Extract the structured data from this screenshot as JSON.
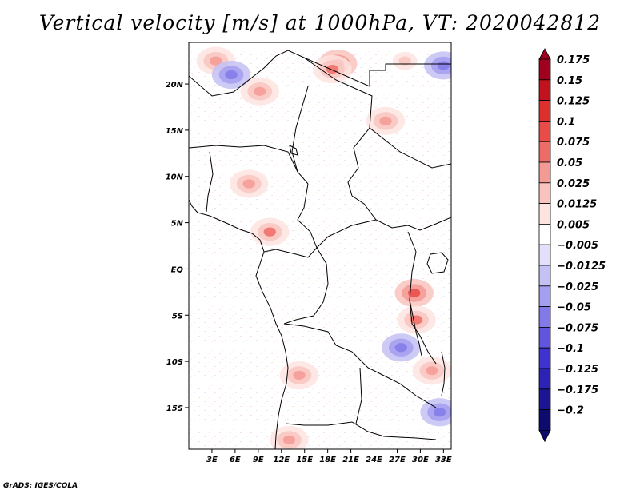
{
  "title": "Vertical velocity [m/s] at 1000hPa, VT: 2020042812",
  "credit": "GrADS: IGES/COLA",
  "map": {
    "lat_range": [
      -19.5,
      24.5
    ],
    "lon_range": [
      0,
      34
    ],
    "lat_ticks": [
      {
        "value": 20,
        "label": "20N"
      },
      {
        "value": 15,
        "label": "15N"
      },
      {
        "value": 10,
        "label": "10N"
      },
      {
        "value": 5,
        "label": "5N"
      },
      {
        "value": 0,
        "label": "EQ"
      },
      {
        "value": -5,
        "label": "5S"
      },
      {
        "value": -10,
        "label": "10S"
      },
      {
        "value": -15,
        "label": "15S"
      }
    ],
    "lon_ticks": [
      {
        "value": 3,
        "label": "3E"
      },
      {
        "value": 6,
        "label": "6E"
      },
      {
        "value": 9,
        "label": "9E"
      },
      {
        "value": 12,
        "label": "12E"
      },
      {
        "value": 15,
        "label": "15E"
      },
      {
        "value": 18,
        "label": "18E"
      },
      {
        "value": 21,
        "label": "21E"
      },
      {
        "value": 24,
        "label": "24E"
      },
      {
        "value": 27,
        "label": "27E"
      },
      {
        "value": 30,
        "label": "30E"
      },
      {
        "value": 33,
        "label": "33E"
      }
    ],
    "blobs": [
      {
        "lon": 19.3,
        "lat": 22.2,
        "v": 0.13
      },
      {
        "lon": 18.6,
        "lat": 21.6,
        "v": 0.09
      },
      {
        "lon": 9.2,
        "lat": 19.2,
        "v": 0.06
      },
      {
        "lon": 7.8,
        "lat": 9.2,
        "v": 0.06
      },
      {
        "lon": 10.5,
        "lat": 4.0,
        "v": 0.08
      },
      {
        "lon": 29.2,
        "lat": -2.6,
        "v": 0.1
      },
      {
        "lon": 29.5,
        "lat": -5.5,
        "v": 0.08
      },
      {
        "lon": 31.5,
        "lat": -11.0,
        "v": 0.06
      },
      {
        "lon": 14.3,
        "lat": -11.5,
        "v": 0.05
      },
      {
        "lon": 13.0,
        "lat": -18.5,
        "v": 0.06
      },
      {
        "lon": 25.5,
        "lat": 16.0,
        "v": 0.05
      },
      {
        "lon": 3.5,
        "lat": 22.5,
        "v": 0.05
      },
      {
        "lon": 5.5,
        "lat": 21.0,
        "v": -0.04
      },
      {
        "lon": 32.5,
        "lat": -15.5,
        "v": -0.05
      },
      {
        "lon": 27.5,
        "lat": -8.5,
        "v": -0.04
      },
      {
        "lon": 33.0,
        "lat": 22.0,
        "v": -0.05
      },
      {
        "lon": 28.0,
        "lat": 22.5,
        "v": 0.04
      }
    ]
  },
  "colorbar": {
    "colors": [
      "#a0001e",
      "#c1121e",
      "#dd2f2d",
      "#e94b47",
      "#ee6c66",
      "#f49a94",
      "#f9c4bf",
      "#fde4e1",
      "#ffffff",
      "#e2e0fb",
      "#c4c1f5",
      "#a49ff0",
      "#837ae9",
      "#6155e0",
      "#3f33cf",
      "#2c22b5",
      "#1b1494",
      "#0e0b6e"
    ],
    "labels": [
      "0.175",
      "0.15",
      "0.125",
      "0.1",
      "0.075",
      "0.05",
      "0.025",
      "0.0125",
      "0.005",
      "−0.005",
      "−0.0125",
      "−0.025",
      "−0.05",
      "−0.075",
      "−0.1",
      "−0.125",
      "−0.175",
      "−0.2"
    ]
  }
}
